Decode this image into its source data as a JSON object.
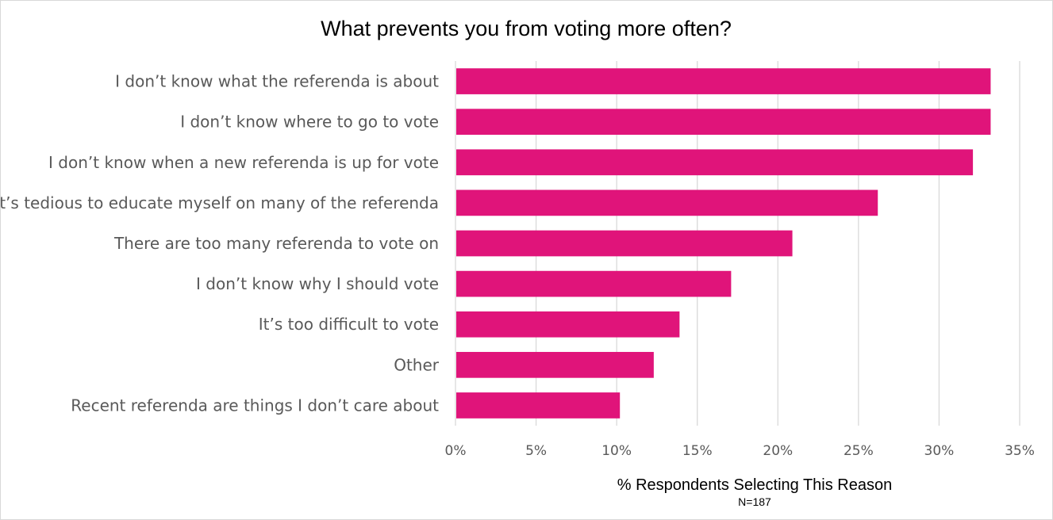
{
  "chart_data": {
    "type": "bar",
    "orientation": "horizontal",
    "title": "What prevents you from voting more often?",
    "xlabel": "% Respondents Selecting This Reason",
    "note": "N=187",
    "categories": [
      "I don’t know what the referenda is about",
      "I don’t know where to go to vote",
      "I don’t know when a new referenda is up for vote",
      "It’s tedious to educate myself on many of the referenda",
      "There are too many referenda to vote on",
      "I don’t know why I should vote",
      "It’s too difficult to vote",
      "Other",
      "Recent referenda are things I don’t care about"
    ],
    "values": [
      33.2,
      33.2,
      32.1,
      26.2,
      20.9,
      17.1,
      13.9,
      12.3,
      10.2
    ],
    "xlim": [
      0,
      35
    ],
    "ticks": [
      "0%",
      "5%",
      "10%",
      "15%",
      "20%",
      "25%",
      "30%",
      "35%"
    ],
    "grid": true,
    "bar_color": "#e0147a",
    "grid_color": "#d9d9d9"
  }
}
